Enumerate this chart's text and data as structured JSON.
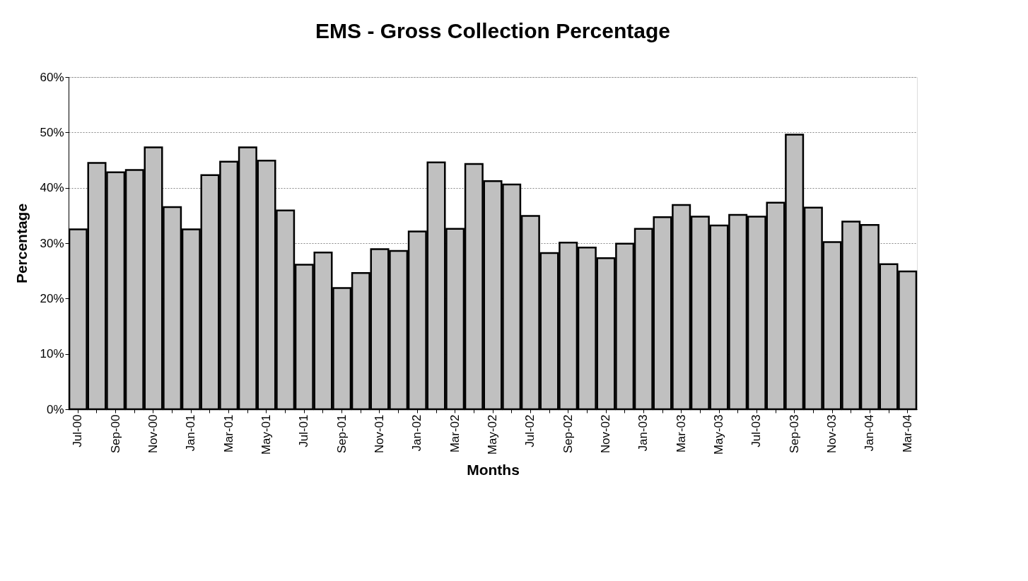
{
  "chart_data": {
    "type": "bar",
    "title": "EMS - Gross Collection Percentage",
    "xlabel": "Months",
    "ylabel": "Percentage",
    "categories": [
      "Jul-00",
      null,
      "Sep-00",
      null,
      "Nov-00",
      null,
      "Jan-01",
      null,
      "Mar-01",
      null,
      "May-01",
      null,
      "Jul-01",
      null,
      "Sep-01",
      null,
      "Nov-01",
      null,
      "Jan-02",
      null,
      "Mar-02",
      null,
      "May-02",
      null,
      "Jul-02",
      null,
      "Sep-02",
      null,
      "Nov-02",
      null,
      "Jan-03",
      null,
      "Mar-03",
      null,
      "May-03",
      null,
      "Jul-03",
      null,
      "Sep-03",
      null,
      "Nov-03",
      null,
      "Jan-04",
      null,
      "Mar-04"
    ],
    "values": [
      32.5,
      44.5,
      42.8,
      43.2,
      47.3,
      36.5,
      32.5,
      42.3,
      44.7,
      47.3,
      44.9,
      35.9,
      26.1,
      28.3,
      21.9,
      24.6,
      28.9,
      28.6,
      32.1,
      44.6,
      32.6,
      44.3,
      41.2,
      40.6,
      34.9,
      28.2,
      30.1,
      29.2,
      27.3,
      29.9,
      32.6,
      34.7,
      36.9,
      34.8,
      33.2,
      35.1,
      34.8,
      37.3,
      49.6,
      36.4,
      30.2,
      33.9,
      33.3,
      26.2,
      24.9
    ],
    "color": "#c0c0c0",
    "ylim": [
      0,
      60
    ],
    "yticks": [
      {
        "value": 0,
        "label": "0%"
      },
      {
        "value": 10,
        "label": "10%"
      },
      {
        "value": 20,
        "label": "20%"
      },
      {
        "value": 30,
        "label": "30%"
      },
      {
        "value": 40,
        "label": "40%"
      },
      {
        "value": 50,
        "label": "50%"
      },
      {
        "value": 60,
        "label": "60%"
      }
    ],
    "grid": "y"
  }
}
